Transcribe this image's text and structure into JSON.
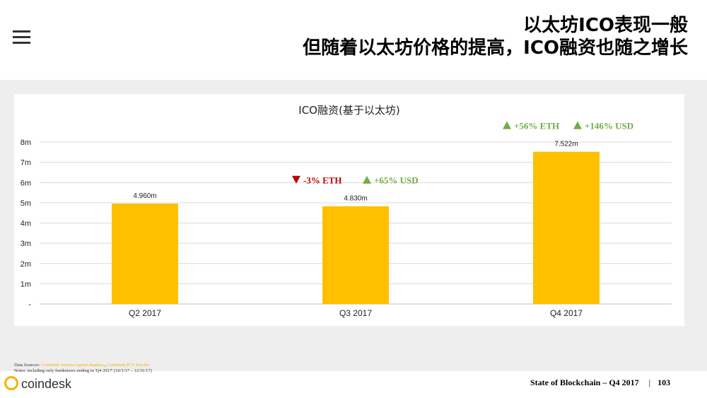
{
  "header": {
    "title_line1": "以太坊ICO表现一般",
    "title_line2": "但随着以太坊价格的提高，ICO融资也随之增长"
  },
  "chart_data": {
    "type": "bar",
    "title": "ICO融资(基于以太坊)",
    "categories": [
      "Q2 2017",
      "Q3 2017",
      "Q4 2017"
    ],
    "values": [
      4.96,
      4.83,
      7.522
    ],
    "value_labels": [
      "4.960m",
      "4.830m",
      "7.522m"
    ],
    "ylim": [
      0,
      8
    ],
    "ytick_labels": [
      "-",
      "1m",
      "2m",
      "3m",
      "4m",
      "5m",
      "6m",
      "7m",
      "8m"
    ],
    "bar_color": "#ffc000",
    "grid": true,
    "annotations": [
      {
        "category": "Q3 2017",
        "direction": "down",
        "text": "-3% ETH",
        "color": "#c00000"
      },
      {
        "category": "Q3 2017",
        "direction": "up",
        "text": "+65% USD",
        "color": "#70ad47"
      },
      {
        "category": "Q4 2017",
        "direction": "up",
        "text": "+56% ETH",
        "color": "#70ad47"
      },
      {
        "category": "Q4 2017",
        "direction": "up",
        "text": "+146% USD",
        "color": "#70ad47"
      }
    ]
  },
  "footer": {
    "sources_prefix": "Data Sources:",
    "sources_link1": "CoinDesk venture capital database",
    "sources_link2": "CoinDesk ICO Tracker",
    "notes": "Notes: including only fundraisers ending in 'Q4 2017' (10/1/17 – 12/31/17)",
    "report": "State of Blockchain – Q4 2017",
    "page_number": "103",
    "logo_text": "coindesk"
  },
  "colors": {
    "accent": "#ffc000",
    "up": "#70ad47",
    "down": "#c00000",
    "band": "#eeeeee"
  }
}
